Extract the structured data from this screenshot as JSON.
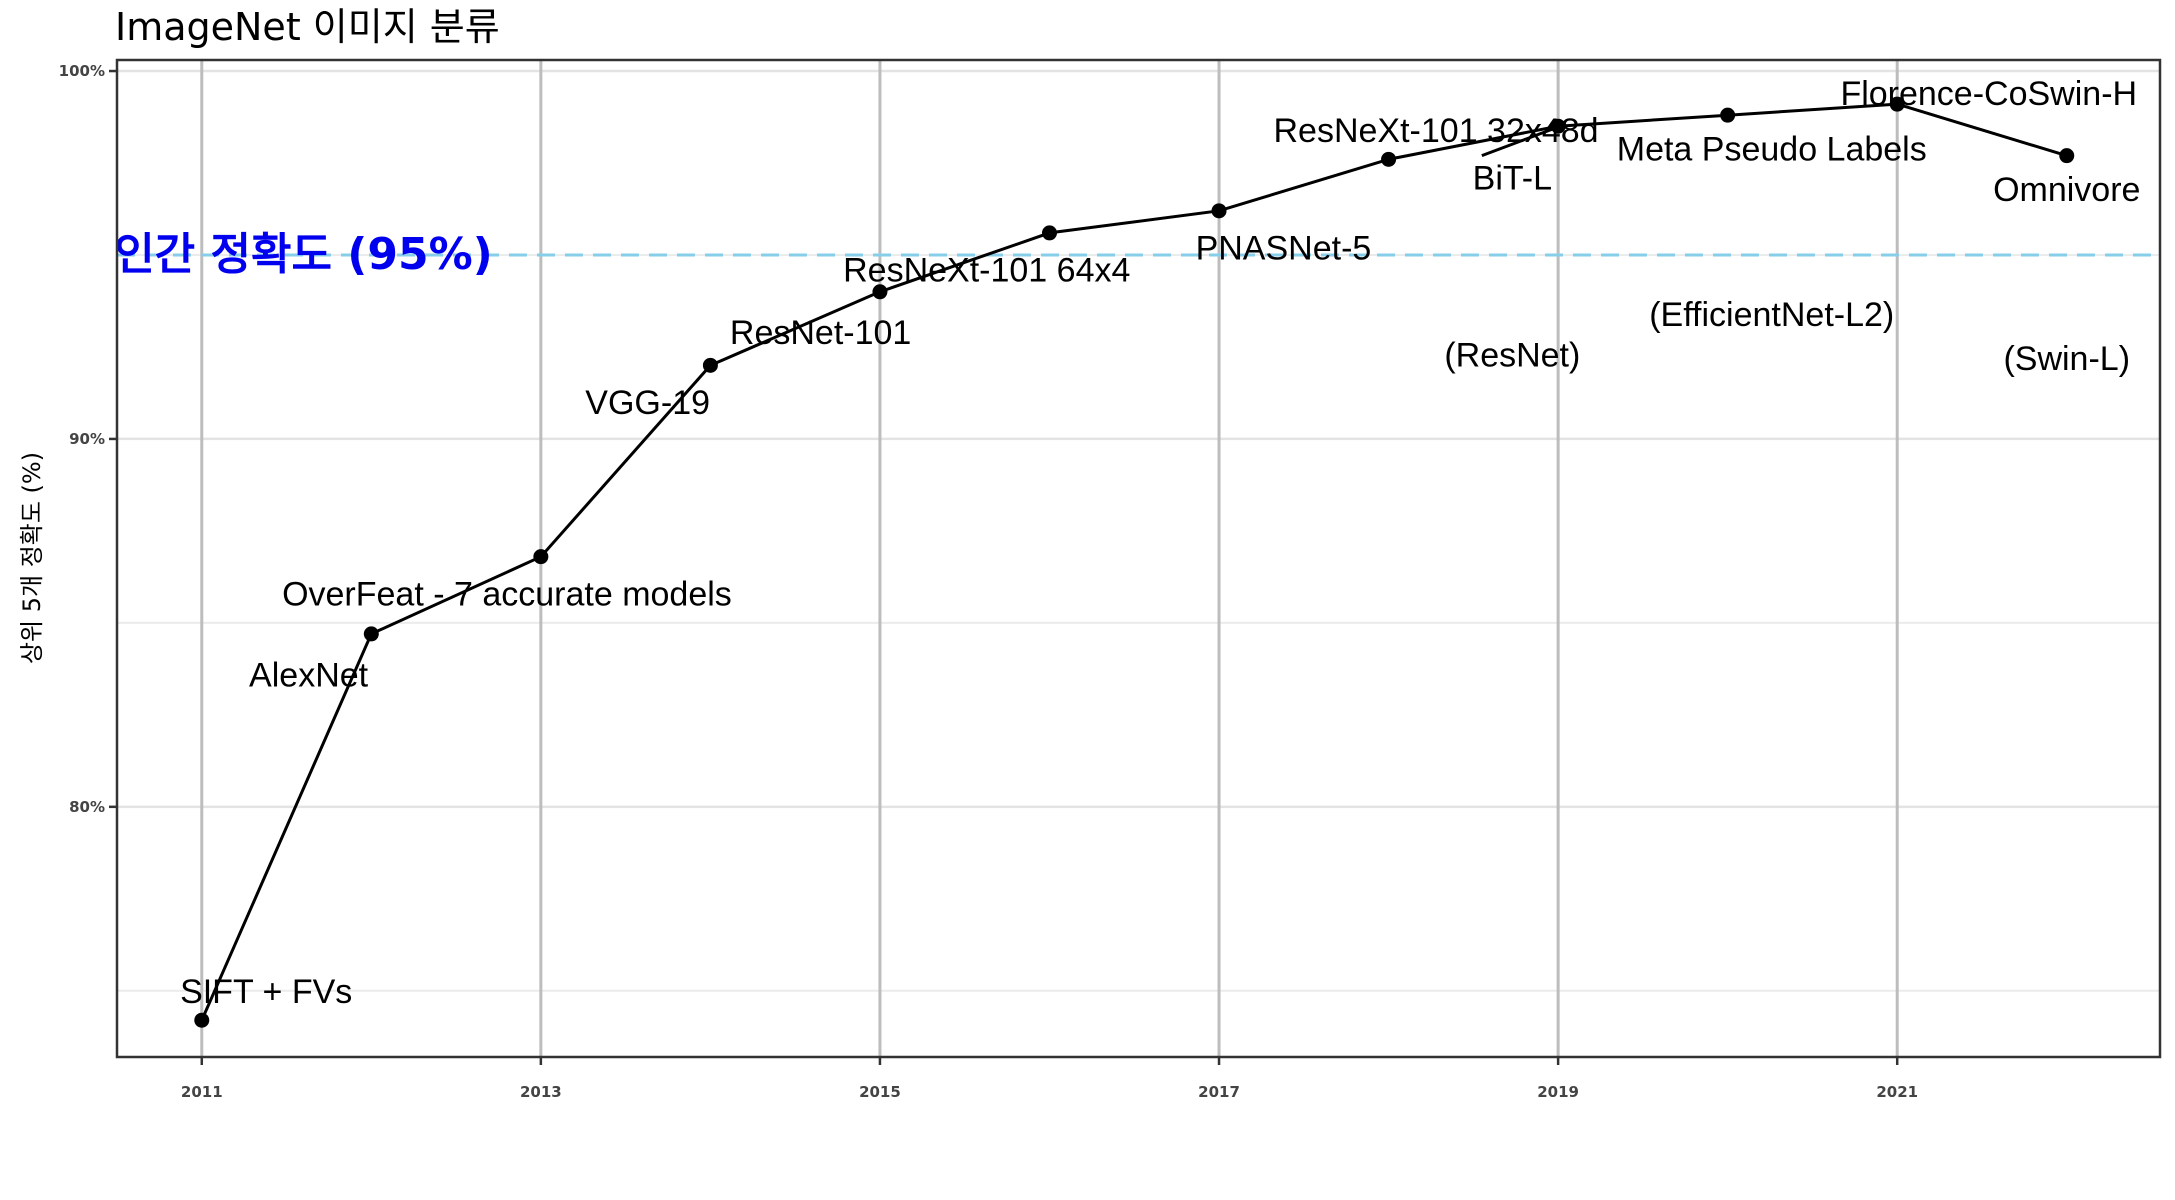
{
  "chart_data": {
    "type": "line",
    "title": "ImageNet 이미지 분류",
    "ylabel": "상위 5개 정확도 (%)",
    "xlabel": "",
    "xlim": [
      2010.5,
      2022.55
    ],
    "ylim": [
      73.2,
      100.3
    ],
    "x_ticks": [
      {
        "value": 2011,
        "label": "2011"
      },
      {
        "value": 2013,
        "label": "2013"
      },
      {
        "value": 2015,
        "label": "2015"
      },
      {
        "value": 2017,
        "label": "2017"
      },
      {
        "value": 2019,
        "label": "2019"
      },
      {
        "value": 2021,
        "label": "2021"
      }
    ],
    "y_ticks": [
      {
        "value": 80,
        "label": "80%"
      },
      {
        "value": 90,
        "label": "90%"
      },
      {
        "value": 100,
        "label": "100%"
      }
    ],
    "grid": true,
    "points": [
      {
        "x": 2011,
        "y": 74.2
      },
      {
        "x": 2012,
        "y": 84.7
      },
      {
        "x": 2013,
        "y": 86.8
      },
      {
        "x": 2014,
        "y": 92.0
      },
      {
        "x": 2015,
        "y": 94.0
      },
      {
        "x": 2016,
        "y": 95.6
      },
      {
        "x": 2017,
        "y": 96.2
      },
      {
        "x": 2018,
        "y": 97.6
      },
      {
        "x": 2019,
        "y": 98.5
      },
      {
        "x": 2020,
        "y": 98.8
      },
      {
        "x": 2021,
        "y": 99.1
      },
      {
        "x": 2022,
        "y": 97.7
      }
    ],
    "reference_line": {
      "y": 95,
      "label": "인간 정확도 (95%)",
      "color": "#87ceeb",
      "label_color": "#0000ee"
    },
    "annotations": [
      {
        "text": "SIFT + FVs",
        "x": 2011.38,
        "y": 75.0
      },
      {
        "text": "AlexNet",
        "x": 2011.63,
        "y": 83.6
      },
      {
        "text": "OverFeat - 7 accurate models",
        "x": 2012.8,
        "y": 85.8
      },
      {
        "text": "VGG-19",
        "x": 2013.63,
        "y": 91.0
      },
      {
        "text": "ResNet-101",
        "x": 2014.65,
        "y": 92.9
      },
      {
        "text": "ResNeXt-101 64x4",
        "x": 2015.63,
        "y": 94.6
      },
      {
        "text": "PNASNet-5",
        "x": 2017.38,
        "y": 95.2
      },
      {
        "text": "ResNeXt-101 32x48d",
        "x": 2018.28,
        "y": 98.4
      },
      {
        "text": "BiT-L",
        "x": 2018.73,
        "y": 97.1
      },
      {
        "text": "(ResNet)",
        "x": 2018.73,
        "y": 92.3
      },
      {
        "text": "Meta Pseudo Labels",
        "x": 2020.26,
        "y": 97.9
      },
      {
        "text": "(EfficientNet-L2)",
        "x": 2020.26,
        "y": 93.4
      },
      {
        "text": "Florence-CoSwin-H",
        "x": 2021.54,
        "y": 99.4
      },
      {
        "text": "Omnivore",
        "x": 2022.0,
        "y": 96.8
      },
      {
        "text": "(Swin-L)",
        "x": 2022.0,
        "y": 92.2
      }
    ]
  }
}
